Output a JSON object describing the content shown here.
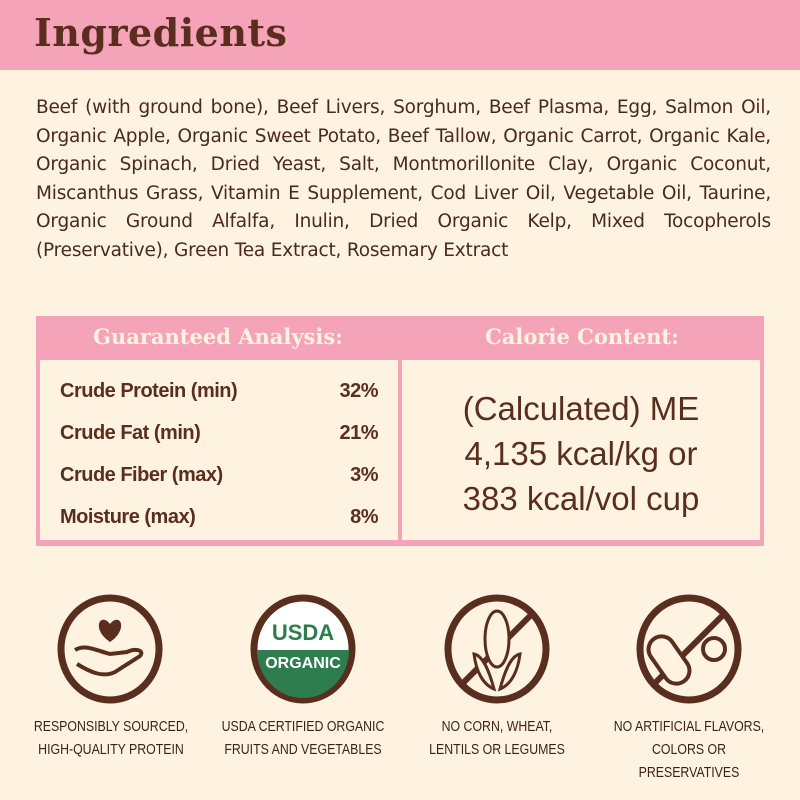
{
  "title": "Ingredients",
  "ingredients": "Beef (with ground bone), Beef Livers, Sorghum, Beef Plasma, Egg, Salmon Oil, Organic Apple, Organic Sweet Potato, Beef Tallow, Organic Carrot, Organic Kale, Organic Spinach, Dried Yeast, Salt, Montmorillonite Clay, Organic Coconut, Miscanthus Grass, Vitamin E Supplement, Cod Liver Oil, Vegetable Oil, Taurine, Organic Ground Alfalfa, Inulin, Dried Organic Kelp, Mixed Tocopherols (Preservative), Green Tea Extract, Rosemary Extract",
  "analysis": {
    "heading": "Guaranteed Analysis:",
    "rows": [
      {
        "label": "Crude Protein (min)",
        "value": "32%"
      },
      {
        "label": "Crude Fat (min)",
        "value": "21%"
      },
      {
        "label": "Crude Fiber (max)",
        "value": "3%"
      },
      {
        "label": "Moisture (max)",
        "value": "8%"
      }
    ]
  },
  "calorie": {
    "heading": "Calorie Content:",
    "lines": [
      "(Calculated) ME",
      "4,135 kcal/kg or",
      "383 kcal/vol cup"
    ]
  },
  "badges": [
    {
      "icon": "heart-hand-icon",
      "line1": "RESPONSIBLY SOURCED,",
      "line2": "HIGH-QUALITY PROTEIN"
    },
    {
      "icon": "usda-organic-seal",
      "seal_top": "USDA",
      "seal_bottom": "ORGANIC",
      "line1": "USDA CERTIFIED ORGANIC",
      "line2": "FRUITS AND VEGETABLES"
    },
    {
      "icon": "no-corn-icon",
      "line1": "NO CORN, WHEAT,",
      "line2": "LENTILS OR LEGUMES"
    },
    {
      "icon": "no-pills-icon",
      "line1": "NO ARTIFICIAL FLAVORS,",
      "line2": "COLORS OR PRESERVATIVES"
    }
  ],
  "colors": {
    "pink": "#f5a3b8",
    "brown": "#5a2e1e",
    "cream": "#fdf3e0",
    "usda_green": "#2e7d4f"
  }
}
